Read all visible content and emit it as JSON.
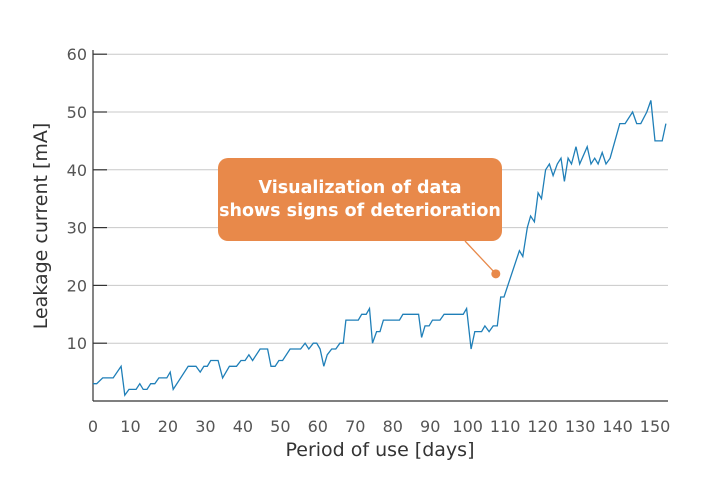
{
  "chart_data": {
    "type": "line",
    "title": "",
    "xlabel": "Period of use [days]",
    "ylabel": "Leakage current [mA]",
    "xlim": [
      0,
      153
    ],
    "ylim": [
      0,
      60
    ],
    "xticks": [
      0,
      10,
      20,
      30,
      40,
      50,
      60,
      70,
      80,
      90,
      100,
      110,
      120,
      130,
      140,
      150
    ],
    "yticks": [
      10,
      20,
      30,
      40,
      50,
      60
    ],
    "grid": "horizontal",
    "colors": {
      "line": "#1f7fb8",
      "callout": "#E8894A",
      "grid": "#c8c8c8",
      "axis": "#333333"
    },
    "annotation": {
      "lines": [
        "Visualization of data",
        "shows signs of deterioration"
      ],
      "point": [
        107.5,
        22
      ]
    },
    "series": [
      {
        "name": "Leakage current",
        "x": [
          0,
          1,
          2.6,
          5.4,
          7.5,
          8.5,
          9.6,
          11.5,
          12.5,
          13.4,
          14.4,
          15.4,
          16.5,
          17.6,
          19.7,
          20.6,
          21.4,
          25.4,
          27.5,
          28.6,
          29.6,
          30.5,
          31.4,
          33.4,
          34.6,
          36.4,
          38.3,
          39.5,
          40.6,
          41.6,
          42.6,
          44.6,
          46.6,
          47.5,
          48.6,
          49.6,
          50.6,
          52.6,
          55.4,
          56.6,
          57.6,
          58.8,
          59.7,
          60.6,
          61.6,
          62.5,
          63.7,
          64.8,
          65.9,
          66.8,
          67.5,
          70.8,
          71.7,
          72.9,
          73.8,
          74.6,
          75.7,
          76.6,
          77.5,
          81.8,
          82.7,
          86.9,
          87.7,
          88.6,
          89.7,
          90.6,
          92.6,
          93.7,
          98.8,
          99.7,
          100.9,
          101.9,
          103.7,
          104.6,
          105.7,
          106.8,
          107.9,
          108.8,
          109.7,
          113.8,
          114.7,
          115.9,
          116.8,
          117.8,
          118.8,
          119.7,
          120.8,
          121.8,
          122.8,
          123.9,
          124.9,
          125.8,
          126.8,
          127.7,
          128.9,
          129.9,
          131.9,
          132.9,
          133.9,
          134.8,
          135.9,
          136.9,
          138,
          140.6,
          142,
          144,
          145.1,
          146.2,
          147.8,
          148.9,
          150,
          151.9,
          152.9
        ],
        "y": [
          3,
          3,
          4,
          4,
          6,
          1,
          2,
          2,
          3,
          2,
          2,
          3,
          3,
          4,
          4,
          5,
          2,
          6,
          6,
          5,
          6,
          6,
          7,
          7,
          4,
          6,
          6,
          7,
          7,
          8,
          7,
          9,
          9,
          6,
          6,
          7,
          7,
          9,
          9,
          10,
          9,
          10,
          10,
          9,
          6,
          8,
          9,
          9,
          10,
          10,
          14,
          14,
          15,
          15,
          16,
          10,
          12,
          12,
          14,
          14,
          15,
          15,
          11,
          13,
          13,
          14,
          14,
          15,
          15,
          16,
          9,
          12,
          12,
          13,
          12,
          13,
          13,
          18,
          18,
          26,
          25,
          30,
          32,
          31,
          36,
          35,
          40,
          41,
          39,
          41,
          42,
          38,
          42,
          41,
          44,
          41,
          44,
          41,
          42,
          41,
          43,
          41,
          42,
          48,
          48,
          50,
          48,
          48,
          50,
          52,
          45,
          45,
          48
        ]
      }
    ]
  }
}
